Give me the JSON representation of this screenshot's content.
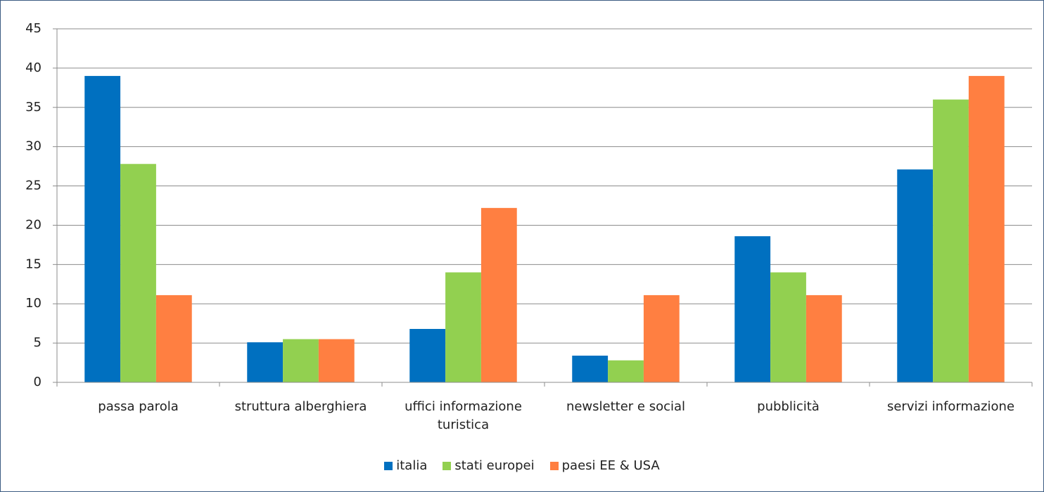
{
  "chart_data": {
    "type": "bar",
    "categories": [
      "passa parola",
      "struttura alberghiera",
      "uffici informazione turistica",
      "newsletter e social",
      "pubblicità",
      "servizi informazione"
    ],
    "series": [
      {
        "name": "italia",
        "color": "#0070c0",
        "values": [
          39.0,
          5.1,
          6.8,
          3.4,
          18.6,
          27.1
        ]
      },
      {
        "name": "stati europei",
        "color": "#92d050",
        "values": [
          27.8,
          5.5,
          14.0,
          2.8,
          14.0,
          36.0
        ]
      },
      {
        "name": "paesi EE & USA",
        "color": "#ff7f41",
        "values": [
          11.1,
          5.5,
          22.2,
          11.1,
          11.1,
          39.0
        ]
      }
    ],
    "ylim": [
      0,
      45
    ],
    "yticks": [
      0,
      5,
      10,
      15,
      20,
      25,
      30,
      35,
      40,
      45
    ],
    "grid": true,
    "legend": "bottom"
  }
}
